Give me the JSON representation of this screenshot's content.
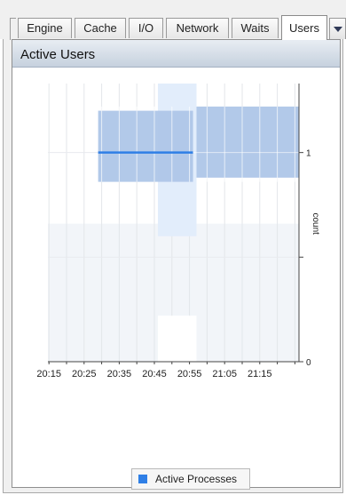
{
  "tabs": [
    {
      "label": "Engine",
      "active": false
    },
    {
      "label": "Cache",
      "active": false
    },
    {
      "label": "I/O",
      "active": false
    },
    {
      "label": "Network",
      "active": false
    },
    {
      "label": "Waits",
      "active": false
    },
    {
      "label": "Users",
      "active": true
    }
  ],
  "panel": {
    "title": "Active Users"
  },
  "chart_data": {
    "type": "line",
    "x": [
      "20:29",
      "20:56"
    ],
    "series": [
      {
        "name": "Active Processes",
        "values": [
          1,
          1
        ],
        "color": "#2f7fe6"
      }
    ],
    "band": {
      "segments": [
        {
          "x_start": "20:29",
          "x_end": "20:56",
          "low": 0.86,
          "high": 1.2
        },
        {
          "x_start": "20:57",
          "x_end": "21:30",
          "low": 0.88,
          "high": 1.22
        }
      ],
      "color": "#aec6e8"
    },
    "highlight": {
      "x_start": "20:46",
      "x_end": "20:57",
      "color": "#e2edfb"
    },
    "xticks": [
      "20:15",
      "20:25",
      "20:35",
      "20:45",
      "20:55",
      "21:05",
      "21:15"
    ],
    "yticks": [
      "0",
      "1"
    ],
    "ylabel": "count",
    "ylim": [
      0,
      1.33
    ],
    "grid": true,
    "legend": "bottom"
  }
}
